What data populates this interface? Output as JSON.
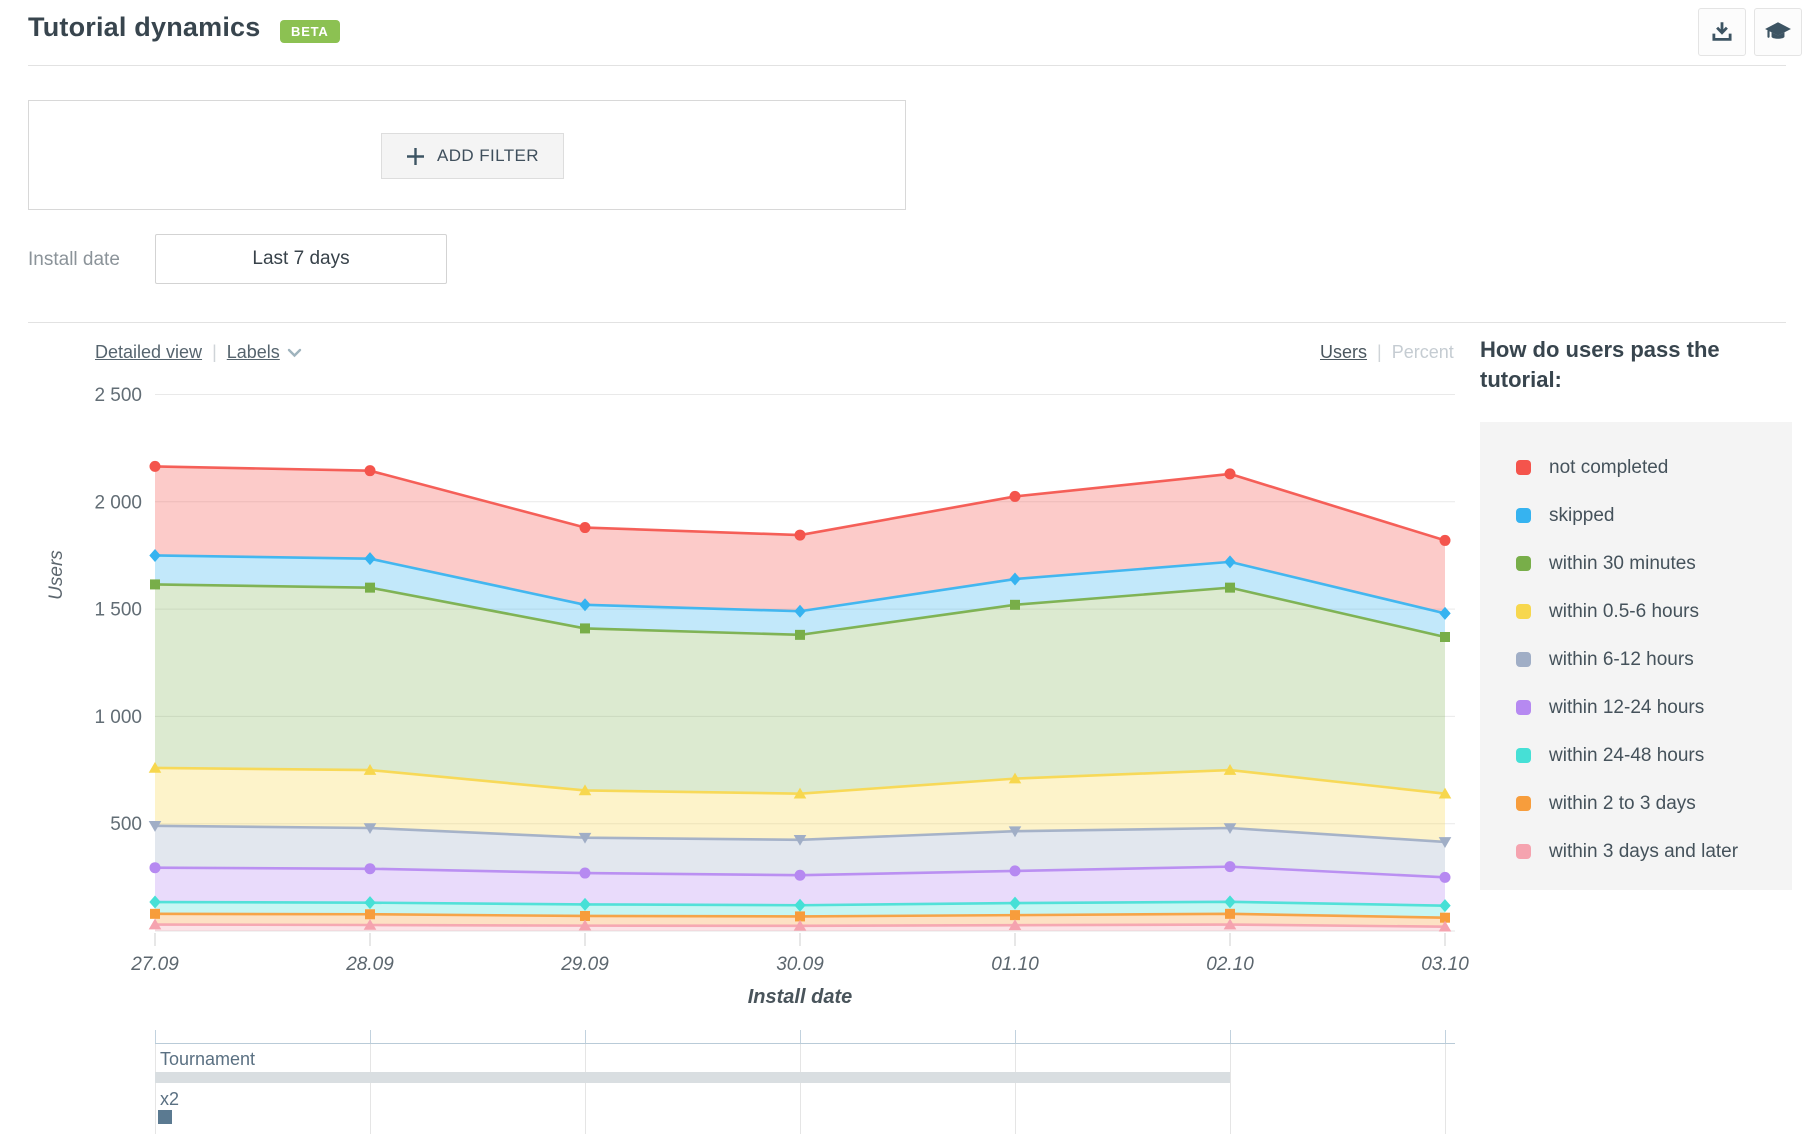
{
  "header": {
    "title": "Tutorial dynamics",
    "badge": "BETA",
    "buttons": [
      {
        "name": "download-report",
        "icon": "download-icon"
      },
      {
        "name": "education",
        "icon": "graduation-cap-icon"
      }
    ]
  },
  "filters": {
    "add_filter_label": "ADD FILTER",
    "install_date_label": "Install date",
    "install_date_value": "Last 7 days"
  },
  "chart_controls": {
    "detailed_view": "Detailed view",
    "labels": "Labels",
    "units_users": "Users",
    "units_percent": "Percent",
    "active_unit": "Users"
  },
  "legend": {
    "title": "How do users pass the tutorial:",
    "items": [
      {
        "label": "not completed",
        "color": "#f4544c"
      },
      {
        "label": "skipped",
        "color": "#36b3f0"
      },
      {
        "label": "within 30 minutes",
        "color": "#78ae49"
      },
      {
        "label": "within 0.5-6 hours",
        "color": "#f7d74e"
      },
      {
        "label": "within 6-12 hours",
        "color": "#a0aec6"
      },
      {
        "label": "within 12-24 hours",
        "color": "#b689f1"
      },
      {
        "label": "within 24-48 hours",
        "color": "#46e0d6"
      },
      {
        "label": "within 2 to 3 days",
        "color": "#f79d3c"
      },
      {
        "label": "within 3 days and later",
        "color": "#f5a3af"
      }
    ]
  },
  "chart_data": {
    "type": "area",
    "title": "Tutorial dynamics",
    "x": [
      "27.09",
      "28.09",
      "29.09",
      "30.09",
      "01.10",
      "02.10",
      "03.10"
    ],
    "xlabel": "Install date",
    "ylabel": "Users",
    "ylim": [
      0,
      2500
    ],
    "yticks": [
      500,
      1000,
      1500,
      2000,
      2500
    ],
    "ytick_labels": [
      "500",
      "1 000",
      "1 500",
      "2 000",
      "2 500"
    ],
    "grid": true,
    "legend_position": "right",
    "value_semantics": "each line is plotted at the stacked (cumulative) height shown on screen; band fill between a line and the next line below",
    "series": [
      {
        "name": "not completed",
        "color": "#f4544c",
        "marker": "circle",
        "values": [
          2165,
          2145,
          1880,
          1845,
          2025,
          2130,
          1820
        ]
      },
      {
        "name": "skipped",
        "color": "#36b3f0",
        "marker": "diamond",
        "values": [
          1750,
          1735,
          1520,
          1490,
          1640,
          1720,
          1480
        ]
      },
      {
        "name": "within 30 minutes",
        "color": "#78ae49",
        "marker": "square",
        "values": [
          1615,
          1600,
          1410,
          1380,
          1520,
          1600,
          1370
        ]
      },
      {
        "name": "within 0.5-6 hours",
        "color": "#f7d74e",
        "marker": "triangle-up",
        "values": [
          760,
          750,
          655,
          640,
          710,
          750,
          640
        ]
      },
      {
        "name": "within 6-12 hours",
        "color": "#a0aec6",
        "marker": "triangle-down",
        "values": [
          490,
          480,
          435,
          425,
          465,
          480,
          415
        ]
      },
      {
        "name": "within 12-24 hours",
        "color": "#b689f1",
        "marker": "circle",
        "values": [
          295,
          290,
          270,
          260,
          280,
          300,
          250
        ]
      },
      {
        "name": "within 24-48 hours",
        "color": "#46e0d6",
        "marker": "diamond",
        "values": [
          135,
          132,
          124,
          120,
          130,
          136,
          118
        ]
      },
      {
        "name": "within 2 to 3 days",
        "color": "#f79d3c",
        "marker": "square",
        "values": [
          80,
          78,
          70,
          68,
          74,
          80,
          62
        ]
      },
      {
        "name": "within 3 days and later",
        "color": "#f5a3af",
        "marker": "triangle-up",
        "values": [
          30,
          28,
          25,
          24,
          27,
          30,
          20
        ]
      }
    ]
  },
  "timeline": {
    "rows": [
      {
        "label": "Tournament",
        "type": "bar",
        "start_date": "27.09",
        "end_date": "02.10"
      },
      {
        "label": "x2",
        "type": "event",
        "date": "27.09"
      }
    ]
  },
  "colors": {
    "badge_green": "#8cc152",
    "icon_slate": "#3d5463",
    "grid_line": "#e9e9e9",
    "axis_text": "#5c666e",
    "timeline_bar": "#d9dee1",
    "timeline_event_marker": "#5b7a91"
  },
  "icons": {
    "download": "tray-with-down-arrow",
    "education": "graduation-cap",
    "add_filter": "plus",
    "labels_menu": "chevron-down"
  }
}
